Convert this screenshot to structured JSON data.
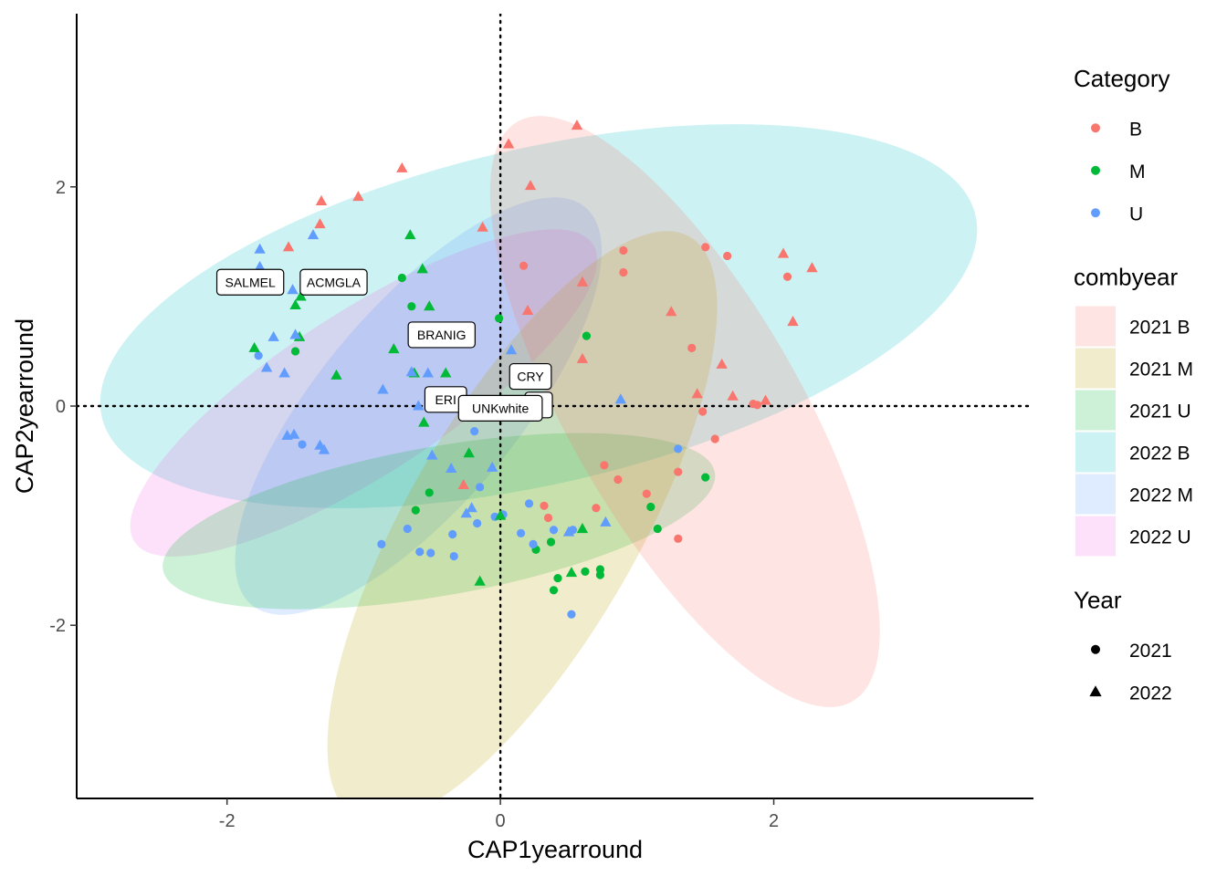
{
  "chart_data": {
    "type": "scatter",
    "title": "",
    "xlabel": "CAP1yearround",
    "ylabel": "CAP2yearround",
    "xlim": [
      -3.1,
      3.9
    ],
    "ylim": [
      -3.58,
      3.58
    ],
    "xticks": [
      -2,
      0,
      2
    ],
    "yticks": [
      -2,
      0,
      2
    ],
    "xtick_labels": [
      "-2",
      "0",
      "2"
    ],
    "ytick_labels": [
      "-2",
      "0",
      "2"
    ],
    "grid": false,
    "reference_lines": {
      "x": 0,
      "y": 0,
      "style": "dotted"
    },
    "colors": {
      "B": "#F8766D",
      "M": "#00BA38",
      "U": "#619CFF"
    },
    "ellipse_colors": {
      "2021 B": "#F8766D",
      "2021 M": "#B79F00",
      "2021 U": "#00BA38",
      "2022 B": "#00BFC4",
      "2022 M": "#619CFF",
      "2022 U": "#F564E3"
    },
    "ellipses": [
      {
        "group": "2022 B",
        "cx": 0.28,
        "cy": 0.82,
        "rx": 3.28,
        "ry": 1.53,
        "angle": -13
      },
      {
        "group": "2022 U",
        "cx": -1.0,
        "cy": 0.12,
        "rx": 2.0,
        "ry": 0.74,
        "angle": -33
      },
      {
        "group": "2022 M",
        "cx": -0.6,
        "cy": 0.0,
        "rx": 1.9,
        "ry": 0.9,
        "angle": -50
      },
      {
        "group": "2021 U",
        "cx": -0.45,
        "cy": -1.05,
        "rx": 2.05,
        "ry": 0.68,
        "angle": -10
      },
      {
        "group": "2021 M",
        "cx": 0.16,
        "cy": -1.1,
        "rx": 2.45,
        "ry": 1.05,
        "angle": -60
      },
      {
        "group": "2021 B",
        "cx": 1.35,
        "cy": -0.05,
        "rx": 2.45,
        "ry": 1.05,
        "angle": 60
      }
    ],
    "points_2021": {
      "B": [
        [
          0.9,
          1.42
        ],
        [
          1.5,
          1.45
        ],
        [
          1.66,
          1.37
        ],
        [
          2.1,
          1.18
        ],
        [
          0.9,
          1.22
        ],
        [
          0.17,
          1.28
        ],
        [
          1.4,
          0.53
        ],
        [
          1.48,
          -0.05
        ],
        [
          1.57,
          -0.3
        ],
        [
          1.85,
          0.02
        ],
        [
          1.88,
          0.01
        ],
        [
          1.3,
          -0.6
        ],
        [
          0.76,
          -0.54
        ],
        [
          0.86,
          -0.67
        ],
        [
          1.07,
          -0.8
        ],
        [
          0.32,
          -0.91
        ],
        [
          0.35,
          -1.02
        ],
        [
          0.7,
          -0.93
        ],
        [
          1.3,
          -1.21
        ]
      ],
      "M": [
        [
          -0.72,
          1.17
        ],
        [
          -0.65,
          0.91
        ],
        [
          -1.5,
          0.5
        ],
        [
          -0.01,
          0.8
        ],
        [
          0.63,
          0.64
        ],
        [
          1.1,
          -0.92
        ],
        [
          1.15,
          -1.12
        ],
        [
          1.5,
          -0.65
        ],
        [
          -0.52,
          -0.79
        ],
        [
          -0.62,
          -0.95
        ],
        [
          0.37,
          -1.24
        ],
        [
          0.26,
          -1.31
        ],
        [
          0.42,
          -1.57
        ],
        [
          0.62,
          -1.51
        ],
        [
          0.73,
          -1.49
        ],
        [
          0.73,
          -1.54
        ],
        [
          0.39,
          -1.68
        ]
      ],
      "U": [
        [
          -0.87,
          -1.26
        ],
        [
          -0.68,
          -1.12
        ],
        [
          -0.59,
          -1.33
        ],
        [
          -0.51,
          -1.34
        ],
        [
          -0.35,
          -1.17
        ],
        [
          -0.34,
          -1.37
        ],
        [
          -0.15,
          -0.74
        ],
        [
          -0.04,
          -1.01
        ],
        [
          -0.17,
          -1.07
        ],
        [
          0.02,
          -0.99
        ],
        [
          0.15,
          -1.16
        ],
        [
          0.21,
          -0.89
        ],
        [
          0.24,
          -1.26
        ],
        [
          0.39,
          -1.13
        ],
        [
          0.53,
          -1.13
        ],
        [
          0.52,
          -1.9
        ],
        [
          1.3,
          -0.39
        ],
        [
          -0.19,
          -0.23
        ],
        [
          -1.77,
          0.46
        ],
        [
          -1.45,
          -0.35
        ]
      ]
    },
    "points_2022": {
      "B": [
        [
          0.56,
          2.56
        ],
        [
          0.06,
          2.39
        ],
        [
          -0.72,
          2.17
        ],
        [
          0.22,
          2.01
        ],
        [
          -1.04,
          1.91
        ],
        [
          -1.31,
          1.87
        ],
        [
          -1.32,
          1.66
        ],
        [
          -1.55,
          1.45
        ],
        [
          -0.13,
          1.63
        ],
        [
          0.6,
          1.13
        ],
        [
          0.2,
          0.87
        ],
        [
          1.25,
          0.86
        ],
        [
          2.07,
          1.39
        ],
        [
          2.28,
          1.26
        ],
        [
          2.14,
          0.77
        ],
        [
          1.62,
          0.38
        ],
        [
          0.6,
          0.43
        ],
        [
          1.44,
          0.11
        ],
        [
          1.7,
          0.09
        ],
        [
          1.94,
          0.05
        ],
        [
          -0.27,
          -0.72
        ]
      ],
      "M": [
        [
          -0.66,
          1.56
        ],
        [
          -0.57,
          1.25
        ],
        [
          -1.46,
          1.0
        ],
        [
          -1.5,
          0.92
        ],
        [
          -0.52,
          0.91
        ],
        [
          -1.47,
          0.63
        ],
        [
          -0.78,
          0.52
        ],
        [
          -1.8,
          0.53
        ],
        [
          -1.2,
          0.28
        ],
        [
          -0.63,
          0.3
        ],
        [
          -0.4,
          0.3
        ],
        [
          -0.56,
          -0.15
        ],
        [
          -0.23,
          -0.43
        ],
        [
          0.0,
          -1.0
        ],
        [
          0.6,
          -1.12
        ],
        [
          0.52,
          -1.52
        ],
        [
          -0.15,
          -1.6
        ]
      ],
      "U": [
        [
          -1.76,
          1.43
        ],
        [
          -1.76,
          1.27
        ],
        [
          -1.37,
          1.56
        ],
        [
          -1.52,
          1.06
        ],
        [
          -1.66,
          0.63
        ],
        [
          -1.5,
          0.65
        ],
        [
          -1.71,
          0.35
        ],
        [
          -1.58,
          0.3
        ],
        [
          -0.86,
          0.15
        ],
        [
          -0.65,
          0.31
        ],
        [
          -0.53,
          0.3
        ],
        [
          -0.6,
          0.0
        ],
        [
          -0.5,
          -0.45
        ],
        [
          -0.36,
          -0.57
        ],
        [
          -0.06,
          -0.56
        ],
        [
          0.08,
          0.51
        ],
        [
          0.88,
          0.06
        ],
        [
          -1.56,
          -0.27
        ],
        [
          -1.51,
          -0.26
        ],
        [
          -1.32,
          -0.36
        ],
        [
          -1.29,
          -0.4
        ],
        [
          -0.21,
          -0.93
        ],
        [
          -0.25,
          -0.98
        ],
        [
          0.77,
          -1.06
        ],
        [
          0.5,
          -1.15
        ]
      ]
    },
    "labels": [
      {
        "text": "SALMEL",
        "x": -1.83,
        "y": 1.13
      },
      {
        "text": "ACMGLA",
        "x": -1.22,
        "y": 1.13
      },
      {
        "text": "BRANIG",
        "x": -0.43,
        "y": 0.65
      },
      {
        "text": "CRY",
        "x": 0.22,
        "y": 0.27
      },
      {
        "text": "ERI",
        "x": -0.4,
        "y": 0.06
      },
      {
        "text": "R",
        "x": 0.28,
        "y": 0.01
      },
      {
        "text": "UNKwhite",
        "x": 0.0,
        "y": -0.02
      }
    ],
    "legends": [
      {
        "title": "Category",
        "type": "point",
        "items": [
          {
            "label": "B",
            "color": "#F8766D"
          },
          {
            "label": "M",
            "color": "#00BA38"
          },
          {
            "label": "U",
            "color": "#619CFF"
          }
        ]
      },
      {
        "title": "combyear",
        "type": "fill",
        "items": [
          {
            "label": "2021 B",
            "color": "#F8766D"
          },
          {
            "label": "2021 M",
            "color": "#B79F00"
          },
          {
            "label": "2021 U",
            "color": "#00BA38"
          },
          {
            "label": "2022 B",
            "color": "#00BFC4"
          },
          {
            "label": "2022 M",
            "color": "#619CFF"
          },
          {
            "label": "2022 U",
            "color": "#F564E3"
          }
        ]
      },
      {
        "title": "Year",
        "type": "shape",
        "items": [
          {
            "label": "2021",
            "shape": "circle"
          },
          {
            "label": "2022",
            "shape": "triangle"
          }
        ]
      }
    ]
  }
}
